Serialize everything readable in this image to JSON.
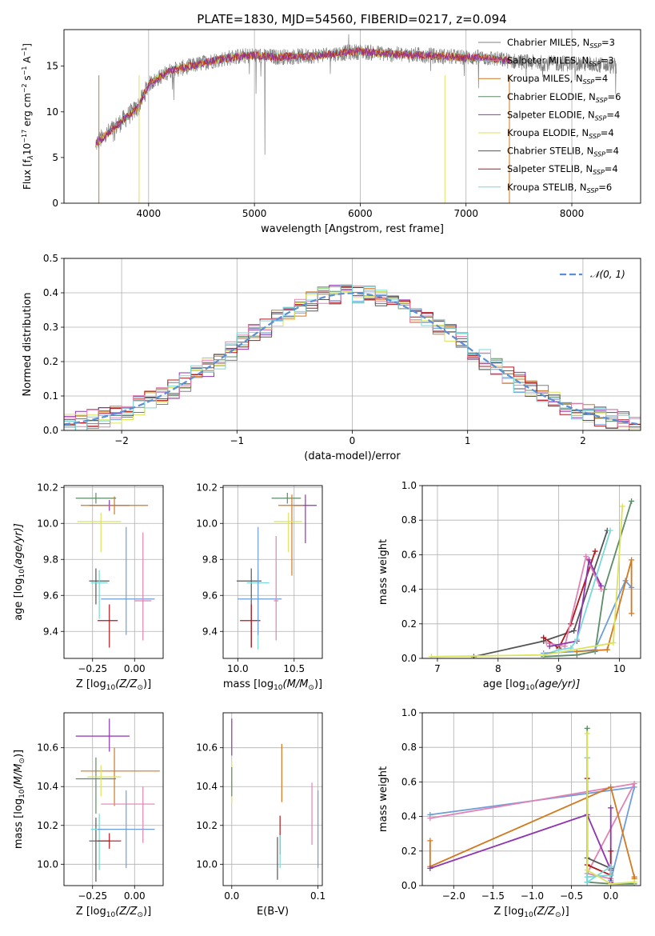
{
  "figure": {
    "title": "PLATE=1830, MJD=54560, FIBERID=0217, z=0.094"
  },
  "colors": {
    "chabrier_miles": "#808080",
    "salpeter_miles": "#6e9ed9",
    "kroupa_miles": "#d2781f",
    "chabrier_elodie": "#5b8c66",
    "salpeter_elodie": "#8f35b1",
    "kroupa_elodie": "#dbe35c",
    "chabrier_stelib": "#555555",
    "salpeter_stelib": "#b0181c",
    "kroupa_stelib": "#77d9d9",
    "pink": "#e282b4",
    "gaussian": "#5a8fd6"
  },
  "chart_data": [
    {
      "id": "spectrum",
      "type": "line",
      "title": "PLATE=1830, MJD=54560, FIBERID=0217, z=0.094",
      "xlabel": "wavelength [Angstrom, rest frame]",
      "ylabel_main": "Flux [f",
      "ylabel_sub": "λ",
      "ylabel_rest": "10",
      "ylabel_sup1": "−17",
      "ylabel_mid": " erg cm",
      "ylabel_sup2": "−2",
      "ylabel_mid2": " s",
      "ylabel_sup3": "−1",
      "ylabel_end": " A",
      "ylabel_sup4": "−1",
      "ylabel_close": "]",
      "xlim": [
        3200,
        8650
      ],
      "ylim": [
        0,
        19
      ],
      "xticks": [
        "4000",
        "5000",
        "6000",
        "7000",
        "8000"
      ],
      "yticks": [
        "0",
        "5",
        "10",
        "15"
      ],
      "grid_x": true,
      "legend_placement": "right",
      "legend": [
        {
          "label": "Chabrier MILES, N",
          "sub": "SSP",
          "tail": "=3"
        },
        {
          "label": "Salpeter MILES, N",
          "sub": "SSP",
          "tail": "=3"
        },
        {
          "label": "Kroupa MILES, N",
          "sub": "SSP",
          "tail": "=4"
        },
        {
          "label": "Chabrier ELODIE, N",
          "sub": "SSP",
          "tail": "=6"
        },
        {
          "label": "Salpeter ELODIE, N",
          "sub": "SSP",
          "tail": "=4"
        },
        {
          "label": "Kroupa ELODIE, N",
          "sub": "SSP",
          "tail": "=4"
        },
        {
          "label": "Chabrier STELIB, N",
          "sub": "SSP",
          "tail": "=4"
        },
        {
          "label": "Salpeter STELIB, N",
          "sub": "SSP",
          "tail": "=4"
        },
        {
          "label": "Kroupa STELIB, N",
          "sub": "SSP",
          "tail": "=6"
        }
      ],
      "continuum": {
        "x": [
          3500,
          3700,
          3900,
          4000,
          4200,
          4400,
          4600,
          4800,
          5000,
          5200,
          5500,
          5800,
          6000,
          6300,
          6600,
          6900,
          7200,
          7400
        ],
        "y": [
          6.5,
          8.5,
          10.5,
          13.0,
          14.5,
          15.0,
          15.6,
          16.0,
          16.2,
          16.0,
          16.1,
          16.4,
          16.6,
          16.3,
          16.2,
          16.0,
          15.9,
          15.6
        ]
      },
      "data_continuum": {
        "x": [
          7400,
          7600,
          7800,
          8000,
          8200,
          8400
        ],
        "y": [
          15.6,
          15.4,
          15.3,
          15.3,
          15.2,
          15.0
        ]
      }
    },
    {
      "id": "residuals",
      "type": "bar",
      "xlabel": "(data-model)/error",
      "ylabel": "Normed distribution",
      "xlim": [
        -2.5,
        2.5
      ],
      "ylim": [
        0,
        0.5
      ],
      "xticks": [
        "−2",
        "−1",
        "0",
        "1",
        "2"
      ],
      "yticks": [
        "0.0",
        "0.1",
        "0.2",
        "0.3",
        "0.4",
        "0.5"
      ],
      "grid": true,
      "legend_placement": "top-right",
      "legend_label": "𝒩(0, 1)",
      "bin_width": 0.1,
      "bin_start": -2.5
    },
    {
      "id": "age_vs_Z",
      "type": "scatter",
      "xlabel": "Z [log",
      "xlabel_sub": "10",
      "xlabel_rest": "(Z/Z",
      "xlabel_sub2": "⊙",
      "xlabel_end": ")]",
      "ylabel": "age  [log",
      "ylabel_sub": "10",
      "ylabel_rest": "(age/yr)]",
      "xlim": [
        -0.42,
        0.17
      ],
      "ylim": [
        9.25,
        10.21
      ],
      "xticks": [
        "−0.25",
        "0.00"
      ],
      "yticks": [
        "9.4",
        "9.6",
        "9.8",
        "10.0",
        "10.2"
      ],
      "grid": true,
      "points": [
        {
          "x": -0.23,
          "y": 10.14,
          "xerr": [
            0.12,
            0.12
          ],
          "yerr": [
            0.03,
            0.03
          ],
          "color": "#5b8c66"
        },
        {
          "x": -0.15,
          "y": 10.1,
          "xerr": [
            0.12,
            0.12
          ],
          "yerr": [
            0.03,
            0.03
          ],
          "color": "#8f35b1"
        },
        {
          "x": -0.12,
          "y": 10.1,
          "xerr": [
            0.2,
            0.2
          ],
          "yerr": [
            0.05,
            0.05
          ],
          "color": "#d2781f"
        },
        {
          "x": -0.2,
          "y": 10.01,
          "xerr": [
            0.14,
            0.12
          ],
          "yerr": [
            0.17,
            0.05
          ],
          "color": "#dbe35c"
        },
        {
          "x": -0.23,
          "y": 9.68,
          "xerr": [
            0.04,
            0.08
          ],
          "yerr": [
            0.13,
            0.07
          ],
          "color": "#555555"
        },
        {
          "x": -0.21,
          "y": 9.67,
          "xerr": [
            0.05,
            0.05
          ],
          "yerr": [
            0.2,
            0.07
          ],
          "color": "#77d9d9"
        },
        {
          "x": -0.15,
          "y": 9.46,
          "xerr": [
            0.07,
            0.05
          ],
          "yerr": [
            0.15,
            0.09
          ],
          "color": "#b0181c"
        },
        {
          "x": -0.05,
          "y": 9.58,
          "xerr": [
            0.15,
            0.17
          ],
          "yerr": [
            0.2,
            0.4
          ],
          "color": "#6e9ed9"
        },
        {
          "x": 0.05,
          "y": 9.57,
          "xerr": [
            0.05,
            0.05
          ],
          "yerr": [
            0.22,
            0.38
          ],
          "color": "#e282b4"
        }
      ]
    },
    {
      "id": "age_vs_mass",
      "type": "scatter",
      "xlabel": "mass [log",
      "xlabel_sub": "10",
      "xlabel_rest": "(M/M",
      "xlabel_sub2": "⊙",
      "xlabel_end": ")]",
      "xlim": [
        9.87,
        10.75
      ],
      "ylim": [
        9.25,
        10.21
      ],
      "xticks": [
        "10.0",
        "10.5"
      ],
      "yticks": [
        "9.4",
        "9.6",
        "9.8",
        "10.0",
        "10.2"
      ],
      "grid": true,
      "points": [
        {
          "x": 10.44,
          "y": 10.14,
          "xerr": [
            0.14,
            0.12
          ],
          "yerr": [
            0.03,
            0.03
          ],
          "color": "#5b8c66"
        },
        {
          "x": 10.6,
          "y": 10.1,
          "xerr": [
            0.1,
            0.1
          ],
          "yerr": [
            0.21,
            0.06
          ],
          "color": "#8f35b1"
        },
        {
          "x": 10.48,
          "y": 10.1,
          "xerr": [
            0.12,
            0.1
          ],
          "yerr": [
            0.39,
            0.06
          ],
          "color": "#d2781f"
        },
        {
          "x": 10.45,
          "y": 10.01,
          "xerr": [
            0.13,
            0.12
          ],
          "yerr": [
            0.17,
            0.05
          ],
          "color": "#dbe35c"
        },
        {
          "x": 10.12,
          "y": 9.68,
          "xerr": [
            0.13,
            0.09
          ],
          "yerr": [
            0.37,
            0.07
          ],
          "color": "#555555"
        },
        {
          "x": 10.18,
          "y": 9.67,
          "xerr": [
            0.1,
            0.1
          ],
          "yerr": [
            0.37,
            0.07
          ],
          "color": "#77d9d9"
        },
        {
          "x": 10.12,
          "y": 9.46,
          "xerr": [
            0.1,
            0.08
          ],
          "yerr": [
            0.15,
            0.09
          ],
          "color": "#b0181c"
        },
        {
          "x": 10.18,
          "y": 9.58,
          "xerr": [
            0.18,
            0.21
          ],
          "yerr": [
            0.2,
            0.4
          ],
          "color": "#6e9ed9"
        },
        {
          "x": 10.34,
          "y": 9.57,
          "xerr": [
            0.02,
            0.02
          ],
          "yerr": [
            0.22,
            0.36
          ],
          "color": "#e282b4"
        }
      ]
    },
    {
      "id": "mass_weight_vs_age",
      "type": "line",
      "xlabel": "age  [log",
      "xlabel_sub": "10",
      "xlabel_rest": "(age/yr)]",
      "ylabel": "mass weight",
      "xlim": [
        6.75,
        10.35
      ],
      "ylim": [
        0,
        1
      ],
      "xticks": [
        "7",
        "8",
        "9",
        "10"
      ],
      "yticks": [
        "0.0",
        "0.2",
        "0.4",
        "0.6",
        "0.8",
        "1.0"
      ],
      "grid": true,
      "series": [
        {
          "color": "#5b8c66",
          "x": [
            8.75,
            9.3,
            9.6,
            9.75,
            10.2
          ],
          "y": [
            0.01,
            0.02,
            0.04,
            0.4,
            0.91
          ]
        },
        {
          "color": "#555555",
          "x": [
            7.6,
            8.75,
            9.25,
            9.8
          ],
          "y": [
            0.01,
            0.1,
            0.16,
            0.74
          ]
        },
        {
          "color": "#b0181c",
          "x": [
            8.75,
            9.0,
            9.2,
            9.6
          ],
          "y": [
            0.12,
            0.06,
            0.2,
            0.62
          ]
        },
        {
          "color": "#e282b4",
          "x": [
            8.8,
            9.1,
            9.45,
            9.7
          ],
          "y": [
            0.09,
            0.07,
            0.59,
            0.4
          ]
        },
        {
          "color": "#8f35b1",
          "x": [
            8.85,
            9.3,
            9.5,
            9.7
          ],
          "y": [
            0.07,
            0.1,
            0.57,
            0.42
          ]
        },
        {
          "color": "#77d9d9",
          "x": [
            8.75,
            9.0,
            9.2,
            9.3,
            9.85
          ],
          "y": [
            0.02,
            0.05,
            0.06,
            0.11,
            0.74
          ]
        },
        {
          "color": "#6e9ed9",
          "x": [
            8.75,
            9.3,
            9.6,
            10.1,
            10.2
          ],
          "y": [
            0.03,
            0.04,
            0.05,
            0.45,
            0.41
          ]
        },
        {
          "color": "#d2781f",
          "x": [
            9.3,
            9.8,
            10.2,
            10.2
          ],
          "y": [
            0.04,
            0.05,
            0.57,
            0.26
          ]
        },
        {
          "color": "#dbe35c",
          "x": [
            6.9,
            8.75,
            9.9,
            10.05
          ],
          "y": [
            0.01,
            0.02,
            0.09,
            0.88
          ]
        }
      ]
    },
    {
      "id": "mass_vs_Z",
      "type": "scatter",
      "xlabel": "Z [log",
      "xlabel_sub": "10",
      "xlabel_rest": "(Z/Z",
      "xlabel_sub2": "⊙",
      "xlabel_end": ")]",
      "ylabel": "mass [log",
      "ylabel_sub": "10",
      "ylabel_rest": "(M/M",
      "ylabel_sub2": "⊙",
      "ylabel_end": ")]",
      "xlim": [
        -0.42,
        0.17
      ],
      "ylim": [
        9.89,
        10.78
      ],
      "xticks": [
        "−0.25",
        "0.00"
      ],
      "yticks": [
        "10.0",
        "10.2",
        "10.4",
        "10.6"
      ],
      "grid": true,
      "points": [
        {
          "x": -0.15,
          "y": 10.66,
          "xerr": [
            0.2,
            0.12
          ],
          "yerr": [
            0.08,
            0.09
          ],
          "color": "#8f35b1"
        },
        {
          "x": -0.23,
          "y": 10.44,
          "xerr": [
            0.12,
            0.12
          ],
          "yerr": [
            0.18,
            0.11
          ],
          "color": "#5b8c66"
        },
        {
          "x": -0.12,
          "y": 10.48,
          "xerr": [
            0.2,
            0.27
          ],
          "yerr": [
            0.18,
            0.12
          ],
          "color": "#d2781f"
        },
        {
          "x": -0.2,
          "y": 10.45,
          "xerr": [
            0.08,
            0.12
          ],
          "yerr": [
            0.1,
            0.06
          ],
          "color": "#dbe35c"
        },
        {
          "x": -0.23,
          "y": 10.12,
          "xerr": [
            0.04,
            0.08
          ],
          "yerr": [
            0.21,
            0.12
          ],
          "color": "#555555"
        },
        {
          "x": -0.21,
          "y": 10.18,
          "xerr": [
            0.05,
            0.05
          ],
          "yerr": [
            0.21,
            0.08
          ],
          "color": "#77d9d9"
        },
        {
          "x": -0.15,
          "y": 10.12,
          "xerr": [
            0.07,
            0.07
          ],
          "yerr": [
            0.04,
            0.04
          ],
          "color": "#b0181c"
        },
        {
          "x": -0.05,
          "y": 10.18,
          "xerr": [
            0.17,
            0.17
          ],
          "yerr": [
            0.2,
            0.2
          ],
          "color": "#6e9ed9"
        },
        {
          "x": 0.05,
          "y": 10.31,
          "xerr": [
            0.25,
            0.07
          ],
          "yerr": [
            0.2,
            0.09
          ],
          "color": "#e282b4"
        }
      ]
    },
    {
      "id": "mass_vs_EBV",
      "type": "scatter",
      "xlabel": "E(B-V)",
      "xlim": [
        -0.01,
        0.105
      ],
      "ylim": [
        9.89,
        10.78
      ],
      "xticks": [
        "0.0",
        "0.1"
      ],
      "yticks": [
        "10.0",
        "10.2",
        "10.4",
        "10.6"
      ],
      "grid": true,
      "points": [
        {
          "x": 0.0,
          "y": 10.66,
          "xerr": [
            0,
            0
          ],
          "yerr": [
            0.1,
            0.09
          ],
          "color": "#8f35b1"
        },
        {
          "x": 0.0,
          "y": 10.45,
          "xerr": [
            0,
            0
          ],
          "yerr": [
            0.14,
            0.08
          ],
          "color": "#dbe35c"
        },
        {
          "x": 0.0,
          "y": 10.4,
          "xerr": [
            0,
            0
          ],
          "yerr": [
            0.05,
            0.1
          ],
          "color": "#5b8c66"
        },
        {
          "x": 0.058,
          "y": 10.5,
          "xerr": [
            0,
            0
          ],
          "yerr": [
            0.18,
            0.12
          ],
          "color": "#d2781f"
        },
        {
          "x": 0.056,
          "y": 10.15,
          "xerr": [
            0,
            0
          ],
          "yerr": [
            0.1,
            0.1
          ],
          "color": "#b0181c"
        },
        {
          "x": 0.053,
          "y": 10.08,
          "xerr": [
            0,
            0
          ],
          "yerr": [
            0.16,
            0.06
          ],
          "color": "#555555"
        },
        {
          "x": 0.056,
          "y": 10.1,
          "xerr": [
            0,
            0
          ],
          "yerr": [
            0.12,
            0.05
          ],
          "color": "#77d9d9"
        },
        {
          "x": 0.093,
          "y": 10.25,
          "xerr": [
            0,
            0
          ],
          "yerr": [
            0.15,
            0.17
          ],
          "color": "#e282b4"
        },
        {
          "x": 0.1,
          "y": 10.18,
          "xerr": [
            0,
            0
          ],
          "yerr": [
            0.2,
            0.2
          ],
          "color": "#6e9ed9"
        }
      ]
    },
    {
      "id": "mass_weight_vs_Z",
      "type": "line",
      "xlabel": "Z [log",
      "xlabel_sub": "10",
      "xlabel_rest": "(Z/Z",
      "xlabel_sub2": "⊙",
      "xlabel_end": ")]",
      "ylabel": "mass weight",
      "xlim": [
        -2.4,
        0.38
      ],
      "ylim": [
        0,
        1
      ],
      "xticks": [
        "−2.0",
        "−1.5",
        "−1.0",
        "−0.5",
        "0.0"
      ],
      "yticks": [
        "0.0",
        "0.2",
        "0.4",
        "0.6",
        "0.8",
        "1.0"
      ],
      "grid": true,
      "series": [
        {
          "color": "#6e9ed9",
          "x": [
            -2.3,
            0.3,
            0.0,
            0.0
          ],
          "y": [
            0.41,
            0.57,
            0.03,
            0.02
          ]
        },
        {
          "color": "#e282b4",
          "x": [
            -2.3,
            0.3,
            -0.3,
            0.0
          ],
          "y": [
            0.39,
            0.59,
            0.07,
            0.04
          ]
        },
        {
          "color": "#d2781f",
          "x": [
            -2.3,
            -2.3,
            0.0,
            0.3,
            0.3
          ],
          "y": [
            0.26,
            0.11,
            0.57,
            0.05,
            0.04
          ]
        },
        {
          "color": "#8f35b1",
          "x": [
            -2.3,
            -0.3,
            0.0,
            0.0,
            0.0
          ],
          "y": [
            0.1,
            0.41,
            0.09,
            0.45,
            0.02
          ]
        },
        {
          "color": "#5b8c66",
          "x": [
            -0.3,
            -0.3,
            0.0,
            0.3
          ],
          "y": [
            0.91,
            0.02,
            0.01,
            0.01
          ]
        },
        {
          "color": "#555555",
          "x": [
            -0.3,
            -0.3,
            0.0,
            0.0
          ],
          "y": [
            0.74,
            0.16,
            0.1,
            0.01
          ]
        },
        {
          "color": "#b0181c",
          "x": [
            -0.3,
            -0.3,
            0.0,
            0.0
          ],
          "y": [
            0.62,
            0.12,
            0.06,
            0.2
          ]
        },
        {
          "color": "#77d9d9",
          "x": [
            -0.3,
            -0.3,
            0.0,
            0.0,
            -0.3
          ],
          "y": [
            0.74,
            0.02,
            0.11,
            0.06,
            0.05
          ]
        },
        {
          "color": "#dbe35c",
          "x": [
            -0.3,
            -0.3,
            0.0,
            0.3
          ],
          "y": [
            0.88,
            0.09,
            0.01,
            0.02
          ]
        }
      ]
    }
  ]
}
